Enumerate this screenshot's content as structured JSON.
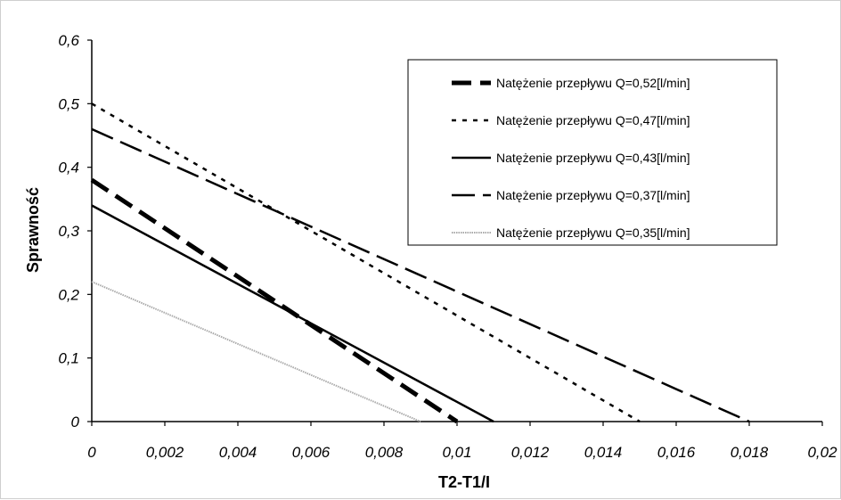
{
  "chart_data": {
    "type": "line",
    "xlabel": "T2-T1/I",
    "ylabel": "Sprawność",
    "xlim": [
      0,
      0.02
    ],
    "ylim": [
      0,
      0.6
    ],
    "xticks": [
      "0",
      "0,002",
      "0,004",
      "0,006",
      "0,008",
      "0,01",
      "0,012",
      "0,014",
      "0,016",
      "0,018",
      "0,02"
    ],
    "yticks": [
      "0",
      "0,1",
      "0,2",
      "0,3",
      "0,4",
      "0,5",
      "0,6"
    ],
    "grid": false,
    "legend_position": "top-right",
    "series": [
      {
        "name": "Natężenie przepływu Q=0,52[l/min]",
        "style": "thick-dash",
        "color": "#000000",
        "x": [
          0,
          0.01
        ],
        "y": [
          0.38,
          0.0
        ]
      },
      {
        "name": "Natężenie przepływu Q=0,47[l/min]",
        "style": "dotted",
        "color": "#000000",
        "x": [
          0,
          0.015
        ],
        "y": [
          0.5,
          0.0
        ]
      },
      {
        "name": "Natężenie przepływu Q=0,43[l/min]",
        "style": "solid",
        "color": "#000000",
        "x": [
          0,
          0.011
        ],
        "y": [
          0.34,
          0.0
        ]
      },
      {
        "name": "Natężenie przepływu Q=0,37[l/min]",
        "style": "long-dash",
        "color": "#000000",
        "x": [
          0,
          0.018
        ],
        "y": [
          0.46,
          0.0
        ]
      },
      {
        "name": "Natężenie przepływu Q=0,35[l/min]",
        "style": "light",
        "color": "#aaaaaa",
        "x": [
          0,
          0.009
        ],
        "y": [
          0.22,
          0.0
        ]
      }
    ]
  }
}
